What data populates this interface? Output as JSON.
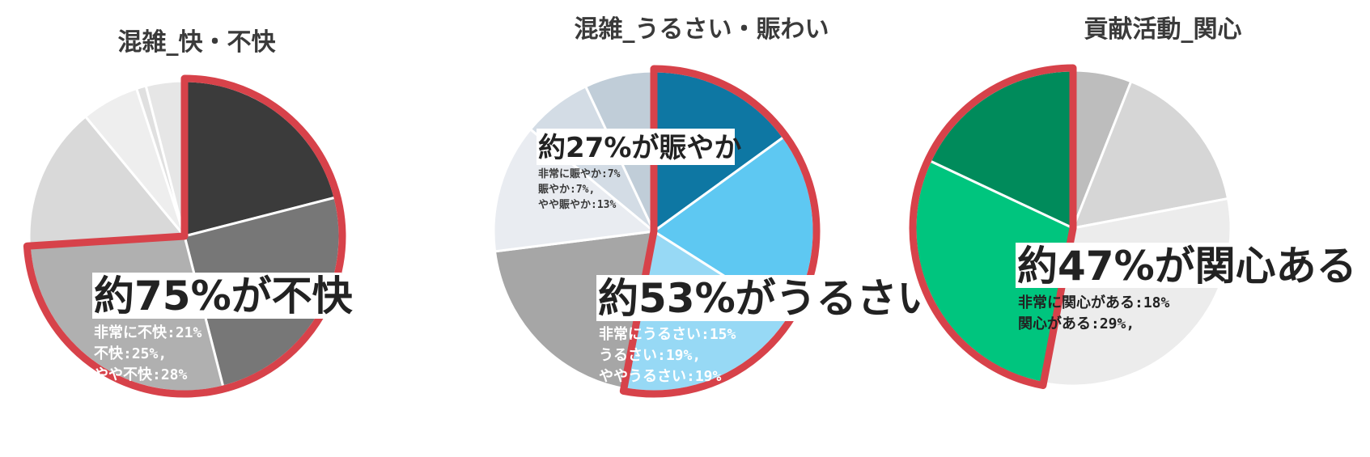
{
  "chart_data": [
    {
      "type": "pie",
      "title": "混雑_快・不快",
      "categories": [
        "非常に不快",
        "不快",
        "やや不快",
        "",
        "",
        "",
        ""
      ],
      "values": [
        21,
        25,
        28,
        15,
        6,
        1,
        4
      ],
      "colors": [
        "#3b3b3b",
        "#777777",
        "#b0b0b0",
        "#d9d9d9",
        "#eeeeee",
        "#e0e0e0",
        "#e6e6e6"
      ],
      "highlight_group": [
        0,
        1,
        2
      ],
      "highlight_color": "#d7424a",
      "annotation": {
        "headline": "約75%が不快",
        "lines": [
          "非常に不快:21%",
          "不快:25%,",
          "やや不快:28%"
        ]
      }
    },
    {
      "type": "pie",
      "title": "混雑_うるさい・賑わい",
      "categories": [
        "非常にうるさい",
        "うるさい",
        "ややうるさい",
        "",
        "やや賑やか",
        "賑やか",
        "非常に賑やか"
      ],
      "values": [
        15,
        19,
        19,
        20,
        13,
        7,
        7
      ],
      "colors": [
        "#0e77a3",
        "#5ec8f2",
        "#97d9f5",
        "#a6a6a6",
        "#e9ecf1",
        "#d3dce5",
        "#c0cdd8"
      ],
      "highlight_group": [
        0,
        1,
        2
      ],
      "highlight_color": "#d7424a",
      "annotation": {
        "headline": "約53%がうるさい",
        "lines": [
          "非常にうるさい:15%",
          "うるさい:19%,",
          "ややうるさい:19%"
        ]
      },
      "annotation2": {
        "headline": "約27%が賑やか",
        "lines": [
          "非常に賑やか:7%",
          "賑やか:7%,",
          "やや賑やか:13%"
        ]
      }
    },
    {
      "type": "pie",
      "title": "貢献活動_関心",
      "categories": [
        "",
        "",
        "",
        "関心がある",
        "非常に関心がある"
      ],
      "values": [
        6,
        16,
        31,
        29,
        18
      ],
      "colors": [
        "#bdbdbd",
        "#d6d6d6",
        "#ececec",
        "#00c57e",
        "#008b5b"
      ],
      "highlight_group": [
        3,
        4
      ],
      "highlight_color": "#d7424a",
      "annotation": {
        "headline": "約47%が関心ある",
        "lines": [
          "非常に関心がある:18%",
          "関心がある:29%,"
        ]
      }
    }
  ]
}
